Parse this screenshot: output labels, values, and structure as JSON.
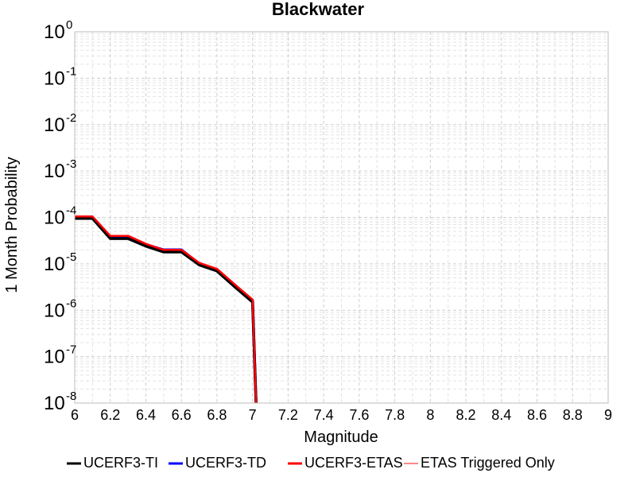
{
  "chart_data": {
    "type": "line",
    "title": "Blackwater",
    "xlabel": "Magnitude",
    "ylabel": "1 Month Probability",
    "xlim": [
      6,
      9
    ],
    "ylim": [
      1e-08,
      1
    ],
    "y_scale": "log",
    "grid": true,
    "legend_position": "bottom",
    "x_ticks": [
      "6",
      "6.2",
      "6.4",
      "6.6",
      "6.8",
      "7",
      "7.2",
      "7.4",
      "7.6",
      "7.8",
      "8",
      "8.2",
      "8.4",
      "8.6",
      "8.8",
      "9"
    ],
    "y_ticks": [
      {
        "base": "10",
        "exp": "0"
      },
      {
        "base": "10",
        "exp": "-1"
      },
      {
        "base": "10",
        "exp": "-2"
      },
      {
        "base": "10",
        "exp": "-3"
      },
      {
        "base": "10",
        "exp": "-4"
      },
      {
        "base": "10",
        "exp": "-5"
      },
      {
        "base": "10",
        "exp": "-6"
      },
      {
        "base": "10",
        "exp": "-7"
      },
      {
        "base": "10",
        "exp": "-8"
      }
    ],
    "series": [
      {
        "name": "UCERF3-TI",
        "color": "#000000",
        "x": [
          6.0,
          6.1,
          6.2,
          6.3,
          6.4,
          6.5,
          6.6,
          6.7,
          6.8,
          6.9,
          7.0,
          7.02
        ],
        "y": [
          9.5e-05,
          9.5e-05,
          3.5e-05,
          3.5e-05,
          2.4e-05,
          1.8e-05,
          1.8e-05,
          9.5e-06,
          7e-06,
          3.2e-06,
          1.5e-06,
          1e-08
        ]
      },
      {
        "name": "UCERF3-TD",
        "color": "#0000ff",
        "x": [
          6.0,
          6.1,
          6.2,
          6.3,
          6.4,
          6.5,
          6.6,
          6.7,
          6.8,
          6.9,
          7.0,
          7.02
        ],
        "y": [
          0.0001,
          0.0001,
          3.8e-05,
          3.8e-05,
          2.6e-05,
          2e-05,
          2e-05,
          1e-05,
          7.5e-06,
          3.5e-06,
          1.6e-06,
          1e-08
        ]
      },
      {
        "name": "UCERF3-ETAS",
        "color": "#ff0000",
        "x": [
          6.0,
          6.1,
          6.2,
          6.3,
          6.4,
          6.5,
          6.6,
          6.7,
          6.8,
          6.9,
          7.0,
          7.02
        ],
        "y": [
          0.000105,
          0.000105,
          4e-05,
          4e-05,
          2.7e-05,
          2e-05,
          2e-05,
          1.05e-05,
          7.8e-06,
          3.6e-06,
          1.7e-06,
          1e-08
        ]
      },
      {
        "name": "ETAS Triggered Only",
        "color": "#ff8888",
        "x": [],
        "y": []
      }
    ]
  }
}
